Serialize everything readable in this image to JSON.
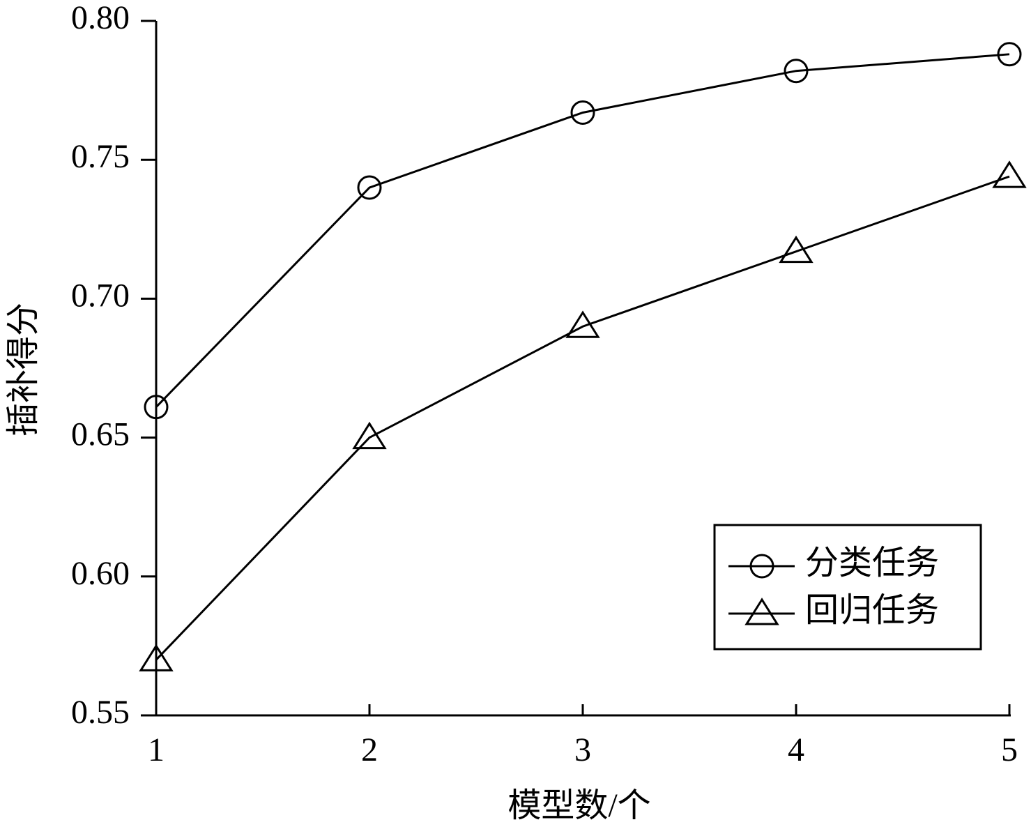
{
  "chart_data": {
    "type": "line",
    "x_label": "模型数/个",
    "y_label": "插补得分",
    "x": [
      1,
      2,
      3,
      4,
      5
    ],
    "xlim": [
      1,
      5
    ],
    "xticks": [
      1,
      2,
      3,
      4,
      5
    ],
    "ylim": [
      0.55,
      0.8
    ],
    "yticks": [
      0.55,
      {
        "value": 0.6,
        "label": "0.60"
      },
      0.65,
      {
        "value": 0.7,
        "label": "0.70"
      },
      0.75,
      {
        "value": 0.8,
        "label": "0.80"
      }
    ],
    "grid": false,
    "legend": "lower right",
    "series": [
      {
        "name": "分类任务",
        "color": "#000000",
        "marker": "circle",
        "values": [
          0.661,
          0.74,
          0.767,
          0.782,
          0.788
        ]
      },
      {
        "name": "回归任务",
        "color": "#000000",
        "marker": "triangle",
        "values": [
          0.57,
          0.65,
          0.69,
          0.717,
          0.744
        ]
      }
    ]
  }
}
